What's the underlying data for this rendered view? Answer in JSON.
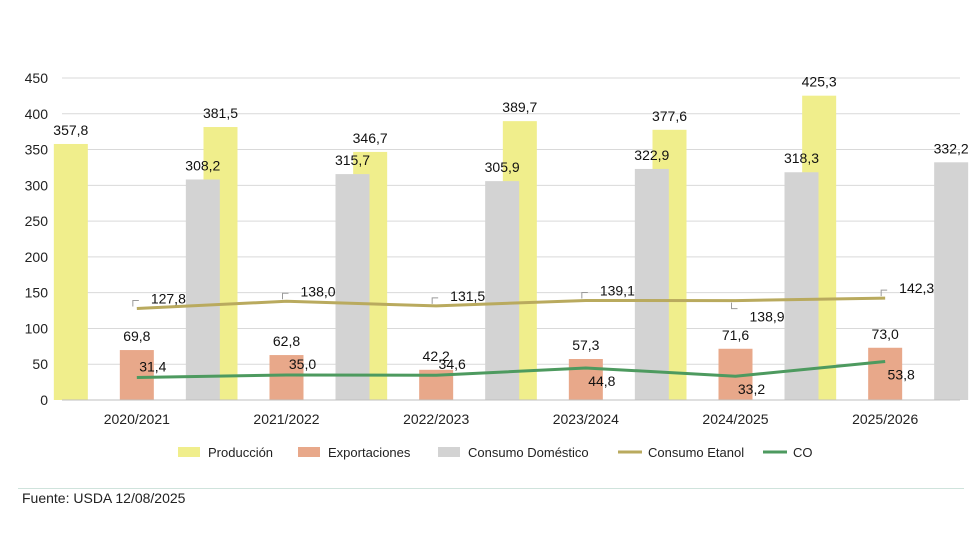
{
  "chart_data": {
    "type": "bar",
    "categories": [
      "2020/2021",
      "2021/2022",
      "2022/2023",
      "2023/2024",
      "2024/2025",
      "2025/2026"
    ],
    "ylim": [
      0,
      450
    ],
    "yticks": [
      0,
      50,
      100,
      150,
      200,
      250,
      300,
      350,
      400,
      450
    ],
    "grid": true,
    "legend_position": "bottom",
    "series": [
      {
        "name": "Producción",
        "kind": "bar",
        "color": "#f0ee8c",
        "values": [
          357.8,
          381.5,
          346.7,
          389.7,
          377.6,
          425.3
        ],
        "labels": [
          "357,8",
          "381,5",
          "346,7",
          "389,7",
          "377,6",
          "425,3"
        ]
      },
      {
        "name": "Exportaciones",
        "kind": "bar",
        "color": "#e8a88a",
        "values": [
          69.8,
          62.8,
          42.2,
          57.3,
          71.6,
          73.0
        ],
        "labels": [
          "69,8",
          "62,8",
          "42,2",
          "57,3",
          "71,6",
          "73,0"
        ]
      },
      {
        "name": "Consumo Doméstico",
        "kind": "bar",
        "color": "#d3d3d3",
        "values": [
          308.2,
          315.7,
          305.9,
          322.9,
          318.3,
          332.2
        ],
        "labels": [
          "308,2",
          "315,7",
          "305,9",
          "322,9",
          "318,3",
          "332,2"
        ]
      },
      {
        "name": "Consumo Etanol",
        "kind": "line",
        "color": "#b9aa5e",
        "values": [
          127.8,
          138.0,
          131.5,
          139.1,
          138.9,
          142.3
        ],
        "labels": [
          "127,8",
          "138,0",
          "131,5",
          "139,1",
          "138,9",
          "142,3"
        ]
      },
      {
        "name": "CO",
        "kind": "line",
        "color": "#4d9a5f",
        "values": [
          31.4,
          35.0,
          34.6,
          44.8,
          33.2,
          53.8
        ],
        "labels": [
          "31,4",
          "35,0",
          "34,6",
          "44,8",
          "33,2",
          "53,8"
        ]
      }
    ]
  },
  "source": "Fuente: USDA 12/08/2025"
}
